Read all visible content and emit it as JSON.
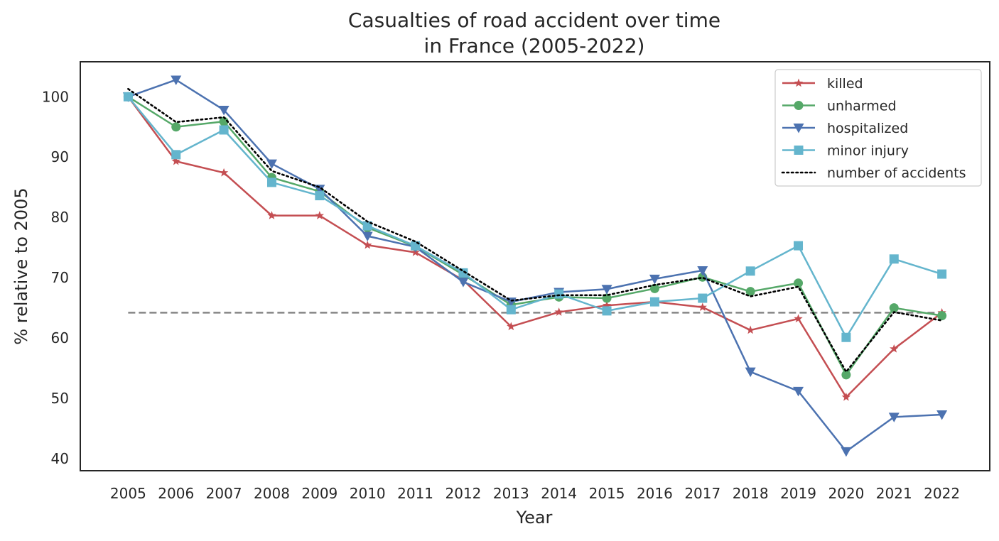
{
  "chart_data": {
    "type": "line",
    "title": [
      "Casualties of road accident over time",
      "in France (2005-2022)"
    ],
    "xlabel": "Year",
    "ylabel": "% relative to 2005",
    "x": [
      2005,
      2006,
      2007,
      2008,
      2009,
      2010,
      2011,
      2012,
      2013,
      2014,
      2015,
      2016,
      2017,
      2018,
      2019,
      2020,
      2021,
      2022
    ],
    "xlim": [
      2004.0,
      2023.0
    ],
    "ylim": [
      38.0,
      105.8
    ],
    "yticks": [
      40,
      50,
      60,
      70,
      80,
      90,
      100
    ],
    "grid": false,
    "legend_position": "top-right",
    "reference_line": {
      "y": 64.2,
      "color": "#808080",
      "style": "dashed"
    },
    "series": [
      {
        "name": "killed",
        "color": "#c44e52",
        "marker": "star",
        "style": "solid",
        "values": [
          100.0,
          89.3,
          87.4,
          80.3,
          80.3,
          75.4,
          74.2,
          69.6,
          61.9,
          64.3,
          65.4,
          66.0,
          65.1,
          61.3,
          63.2,
          50.2,
          58.2,
          64.2
        ]
      },
      {
        "name": "unharmed",
        "color": "#55a868",
        "marker": "circle",
        "style": "solid",
        "values": [
          100.0,
          95.0,
          95.9,
          86.6,
          84.3,
          78.3,
          75.2,
          70.5,
          65.5,
          66.8,
          66.6,
          68.2,
          70.1,
          67.7,
          69.1,
          53.9,
          65.0,
          63.7
        ]
      },
      {
        "name": "hospitalized",
        "color": "#4c72b0",
        "marker": "triangle-down",
        "style": "solid",
        "values": [
          100.0,
          102.8,
          97.8,
          88.9,
          84.7,
          76.9,
          75.1,
          69.3,
          66.0,
          67.6,
          68.1,
          69.8,
          71.2,
          54.4,
          51.2,
          41.2,
          46.9,
          47.3
        ]
      },
      {
        "name": "minor injury",
        "color": "#64b5cd",
        "marker": "square",
        "style": "solid",
        "values": [
          100.0,
          90.4,
          94.5,
          85.8,
          83.6,
          78.6,
          75.3,
          70.8,
          64.7,
          67.3,
          64.5,
          66.0,
          66.6,
          71.1,
          75.3,
          60.1,
          73.1,
          70.6
        ]
      },
      {
        "name": "number of accidents",
        "color": "#000000",
        "marker": "none",
        "style": "dotted",
        "values": [
          101.3,
          95.8,
          96.6,
          87.7,
          85.0,
          79.3,
          76.0,
          71.1,
          66.2,
          67.1,
          67.1,
          68.8,
          70.0,
          66.9,
          68.5,
          54.4,
          64.3,
          62.9
        ]
      }
    ]
  }
}
